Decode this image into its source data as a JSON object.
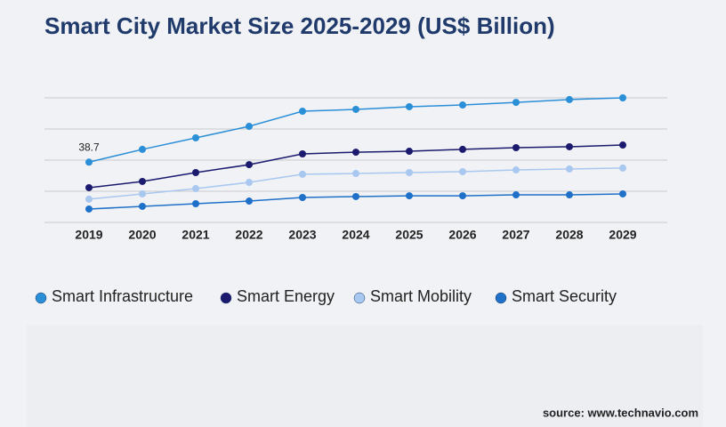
{
  "chart_data": {
    "type": "line",
    "title": "Smart City Market Size 2025-2029 (US$ Billion)",
    "categories": [
      "2019",
      "2020",
      "2021",
      "2022",
      "2023",
      "2024",
      "2025",
      "2026",
      "2027",
      "2028",
      "2029"
    ],
    "series": [
      {
        "name": "Smart Infrastructure",
        "color": "#2b8fd8",
        "values": [
          38.7,
          46.9,
          54.3,
          61.7,
          71.4,
          72.6,
          74.3,
          75.4,
          77.1,
          78.9,
          80
        ]
      },
      {
        "name": "Smart Energy",
        "color": "#1b1a6e",
        "values": [
          22.3,
          26.3,
          32,
          37.1,
          44,
          45.1,
          45.7,
          46.9,
          48,
          48.6,
          49.7
        ]
      },
      {
        "name": "Smart Mobility",
        "color": "#a9c8f0",
        "values": [
          14.9,
          18.3,
          21.7,
          25.7,
          30.9,
          31.4,
          32,
          32.6,
          33.7,
          34.3,
          34.9
        ]
      },
      {
        "name": "Smart Security",
        "color": "#1f70c8",
        "values": [
          8.6,
          10.3,
          12,
          13.7,
          16,
          16.6,
          17.1,
          17.1,
          17.7,
          17.7,
          18.3
        ]
      }
    ],
    "data_labels": [
      {
        "series": 0,
        "index": 0
      }
    ],
    "ylim": [
      0,
      80
    ],
    "yticks": [
      0,
      20,
      40,
      60,
      80
    ],
    "grid": true,
    "source": "source: www.technavio.com"
  }
}
